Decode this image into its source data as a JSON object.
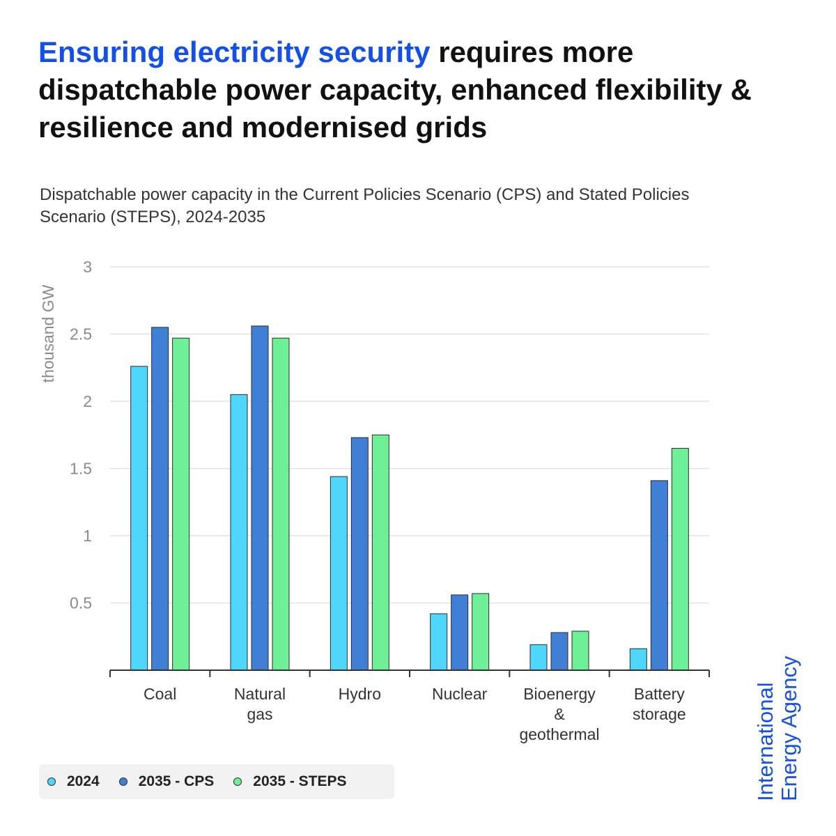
{
  "headline": {
    "accent": "Ensuring electricity security",
    "rest": " requires more dispatchable power capacity, enhanced flexibility & resilience and modernised grids"
  },
  "subtitle": "Dispatchable power capacity in the Current Policies Scenario (CPS) and Stated Policies Scenario (STEPS), 2024-2035",
  "logo": {
    "line1": "International",
    "line2": "Energy Agency"
  },
  "colors": {
    "accent": "#1450e8"
  },
  "chart_data": {
    "type": "bar",
    "title": "",
    "xlabel": "",
    "ylabel": "thousand GW",
    "ylim": [
      0,
      3
    ],
    "yticks": [
      0.5,
      1,
      1.5,
      2,
      2.5,
      3
    ],
    "ytick_labels": [
      "0.5",
      "1",
      "1.5",
      "2",
      "2.5",
      "3"
    ],
    "grid": true,
    "legend_placement": "bottom-left",
    "categories": [
      [
        "Coal"
      ],
      [
        "Natural",
        "gas"
      ],
      [
        "Hydro"
      ],
      [
        "Nuclear"
      ],
      [
        "Bioenergy",
        "&",
        "geothermal"
      ],
      [
        "Battery",
        "storage"
      ]
    ],
    "series": [
      {
        "name": "2024",
        "color": "#4fd6fb",
        "values": [
          2.26,
          2.05,
          1.44,
          0.42,
          0.19,
          0.16
        ]
      },
      {
        "name": "2035 - CPS",
        "color": "#3f7fd6",
        "values": [
          2.55,
          2.56,
          1.73,
          0.56,
          0.28,
          1.41
        ]
      },
      {
        "name": "2035 - STEPS",
        "color": "#6ef097",
        "values": [
          2.47,
          2.47,
          1.75,
          0.57,
          0.29,
          1.65
        ]
      }
    ]
  }
}
